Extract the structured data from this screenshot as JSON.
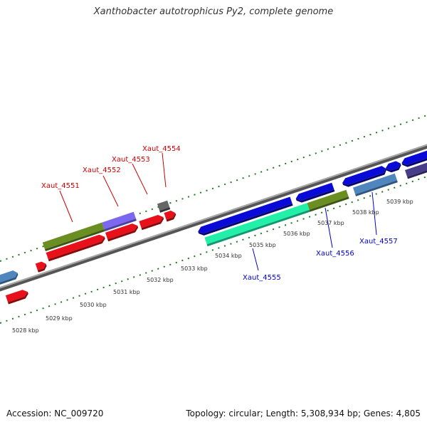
{
  "title": "Xanthobacter autotrophicus Py2, complete genome",
  "footer": {
    "accession": "Accession: NC_009720",
    "topology": "Topology: circular; Length: 5,308,934 bp; Genes: 4,805"
  },
  "colors": {
    "backbone": "#8a8a8a",
    "tick": "#1f7a1f",
    "gene_label_top": "#cc0000",
    "gene_label_bottom": "#0000cc",
    "coord_label": "#333333"
  },
  "coordinate_labels": [
    "5028 kbp",
    "5029 kbp",
    "5030 kbp",
    "5031 kbp",
    "5032 kbp",
    "5033 kbp",
    "5034 kbp",
    "5035 kbp",
    "5036 kbp",
    "5037 kbp",
    "5038 kbp",
    "5039 kbp"
  ],
  "gene_labels_top": [
    "Xaut_4551",
    "Xaut_4552",
    "Xaut_4553",
    "Xaut_4554"
  ],
  "gene_labels_bottom": [
    "Xaut_4555",
    "Xaut_4556",
    "Xaut_4557"
  ],
  "features": [
    {
      "name": "gene-pre-a",
      "color": "#e8101a",
      "strand": "reverse"
    },
    {
      "name": "gene-pre-b",
      "color": "#4f86bd",
      "strand": "forward"
    },
    {
      "name": "gene-pre-c",
      "color": "#e8101a",
      "strand": "forward"
    },
    {
      "name": "gene-4551-olive",
      "color": "#6b8e23",
      "strand": "forward"
    },
    {
      "name": "gene-4551-red",
      "color": "#e8101a",
      "strand": "forward"
    },
    {
      "name": "gene-4552-purple",
      "color": "#7b68ee",
      "strand": "forward"
    },
    {
      "name": "gene-4552-red",
      "color": "#e8101a",
      "strand": "forward"
    },
    {
      "name": "gene-4553",
      "color": "#e8101a",
      "strand": "forward"
    },
    {
      "name": "gene-4554-red",
      "color": "#e8101a",
      "strand": "forward"
    },
    {
      "name": "gene-4554-gray",
      "color": "#666666",
      "strand": "forward"
    },
    {
      "name": "gene-4555-blue",
      "color": "#0a0ad8",
      "strand": "reverse"
    },
    {
      "name": "gene-4555-teal",
      "color": "#22f0a8",
      "strand": "reverse"
    },
    {
      "name": "gene-4556-blue",
      "color": "#0a0ad8",
      "strand": "reverse"
    },
    {
      "name": "gene-4556-olive",
      "color": "#6b8e23",
      "strand": "reverse"
    },
    {
      "name": "gene-4557-blue",
      "color": "#0a0ad8",
      "strand": "reverse"
    },
    {
      "name": "gene-4557-steel",
      "color": "#4f86bd",
      "strand": "reverse"
    },
    {
      "name": "gene-post-a",
      "color": "#0a0ad8",
      "strand": "reverse"
    },
    {
      "name": "gene-post-b",
      "color": "#0a0ad8",
      "strand": "reverse"
    },
    {
      "name": "gene-post-c",
      "color": "#483d8b",
      "strand": "reverse"
    }
  ]
}
